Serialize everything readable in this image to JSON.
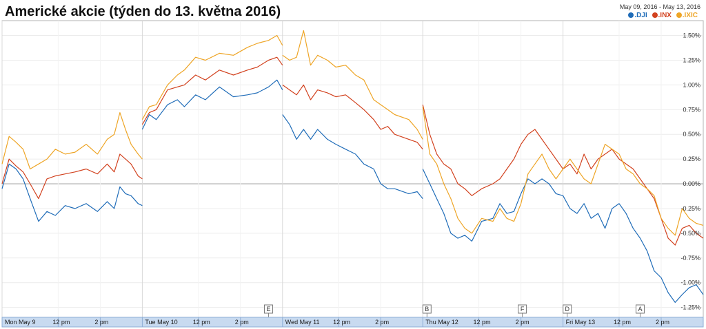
{
  "chart_data": {
    "type": "line",
    "title": "Americké akcie (týden do 13. května 2016)",
    "date_range": "May 09, 2016  -  May 13, 2016",
    "y_unit": "%",
    "ylim": [
      -1.35,
      1.65
    ],
    "y_ticks": [
      "1.50%",
      "1.25%",
      "1.00%",
      "0.75%",
      "0.50%",
      "0.25%",
      "0.00%",
      "-0.25%",
      "-0.50%",
      "-0.75%",
      "-1.00%",
      "-1.25%"
    ],
    "y_tick_values": [
      1.5,
      1.25,
      1.0,
      0.75,
      0.5,
      0.25,
      0.0,
      -0.25,
      -0.5,
      -0.75,
      -1.0,
      -1.25
    ],
    "x_ticks": [
      "Mon May 9",
      "12 pm",
      "2 pm",
      "Tue May 10",
      "12 pm",
      "2 pm",
      "Wed May 11",
      "12 pm",
      "2 pm",
      "Thu May 12",
      "12 pm",
      "2 pm",
      "Fri May 13",
      "12 pm",
      "2 pm"
    ],
    "x_tick_values": [
      0,
      0.4,
      0.7,
      1,
      1.4,
      1.7,
      2,
      2.4,
      2.7,
      3,
      3.4,
      3.7,
      4,
      4.4,
      4.7
    ],
    "x_range": [
      0,
      5
    ],
    "grid": true,
    "legend_position": "top-right",
    "flags": [
      {
        "label": "E",
        "x": 1.9
      },
      {
        "label": "B",
        "x": 3.03
      },
      {
        "label": "F",
        "x": 3.71
      },
      {
        "label": "D",
        "x": 4.03
      },
      {
        "label": "A",
        "x": 4.55
      }
    ],
    "series": [
      {
        "name": ".DJI",
        "color": "#1f6cb8",
        "points": [
          [
            0.0,
            -0.05
          ],
          [
            0.05,
            0.2
          ],
          [
            0.1,
            0.15
          ],
          [
            0.15,
            0.05
          ],
          [
            0.2,
            -0.15
          ],
          [
            0.26,
            -0.38
          ],
          [
            0.32,
            -0.28
          ],
          [
            0.38,
            -0.32
          ],
          [
            0.45,
            -0.22
          ],
          [
            0.52,
            -0.25
          ],
          [
            0.6,
            -0.2
          ],
          [
            0.68,
            -0.28
          ],
          [
            0.75,
            -0.18
          ],
          [
            0.8,
            -0.25
          ],
          [
            0.84,
            -0.03
          ],
          [
            0.88,
            -0.1
          ],
          [
            0.92,
            -0.12
          ],
          [
            0.97,
            -0.2
          ],
          [
            1.0,
            -0.22
          ],
          [
            1.0,
            0.55
          ],
          [
            1.05,
            0.7
          ],
          [
            1.1,
            0.65
          ],
          [
            1.18,
            0.8
          ],
          [
            1.25,
            0.85
          ],
          [
            1.3,
            0.78
          ],
          [
            1.38,
            0.9
          ],
          [
            1.45,
            0.85
          ],
          [
            1.55,
            0.98
          ],
          [
            1.65,
            0.88
          ],
          [
            1.75,
            0.9
          ],
          [
            1.82,
            0.92
          ],
          [
            1.9,
            0.98
          ],
          [
            1.96,
            1.05
          ],
          [
            2.0,
            0.95
          ],
          [
            2.0,
            0.7
          ],
          [
            2.05,
            0.6
          ],
          [
            2.1,
            0.45
          ],
          [
            2.15,
            0.55
          ],
          [
            2.2,
            0.45
          ],
          [
            2.25,
            0.55
          ],
          [
            2.32,
            0.45
          ],
          [
            2.38,
            0.4
          ],
          [
            2.45,
            0.35
          ],
          [
            2.52,
            0.3
          ],
          [
            2.58,
            0.2
          ],
          [
            2.65,
            0.15
          ],
          [
            2.7,
            0.0
          ],
          [
            2.75,
            -0.05
          ],
          [
            2.8,
            -0.05
          ],
          [
            2.9,
            -0.1
          ],
          [
            2.96,
            -0.08
          ],
          [
            3.0,
            -0.15
          ],
          [
            3.0,
            0.15
          ],
          [
            3.05,
            0.0
          ],
          [
            3.1,
            -0.15
          ],
          [
            3.15,
            -0.3
          ],
          [
            3.2,
            -0.5
          ],
          [
            3.25,
            -0.55
          ],
          [
            3.3,
            -0.52
          ],
          [
            3.35,
            -0.58
          ],
          [
            3.42,
            -0.38
          ],
          [
            3.5,
            -0.35
          ],
          [
            3.55,
            -0.2
          ],
          [
            3.6,
            -0.3
          ],
          [
            3.65,
            -0.28
          ],
          [
            3.7,
            -0.1
          ],
          [
            3.75,
            0.05
          ],
          [
            3.8,
            0.0
          ],
          [
            3.85,
            0.05
          ],
          [
            3.9,
            0.0
          ],
          [
            3.95,
            -0.1
          ],
          [
            4.0,
            -0.12
          ],
          [
            4.05,
            -0.25
          ],
          [
            4.1,
            -0.3
          ],
          [
            4.15,
            -0.2
          ],
          [
            4.2,
            -0.35
          ],
          [
            4.25,
            -0.3
          ],
          [
            4.3,
            -0.45
          ],
          [
            4.35,
            -0.25
          ],
          [
            4.4,
            -0.2
          ],
          [
            4.45,
            -0.3
          ],
          [
            4.5,
            -0.45
          ],
          [
            4.55,
            -0.55
          ],
          [
            4.6,
            -0.68
          ],
          [
            4.65,
            -0.88
          ],
          [
            4.7,
            -0.95
          ],
          [
            4.75,
            -1.1
          ],
          [
            4.8,
            -1.2
          ],
          [
            4.85,
            -1.12
          ],
          [
            4.9,
            -1.05
          ],
          [
            4.95,
            -1.02
          ],
          [
            5.0,
            -1.12
          ]
        ]
      },
      {
        "name": ".INX",
        "color": "#d2421f",
        "points": [
          [
            0.0,
            0.0
          ],
          [
            0.05,
            0.25
          ],
          [
            0.1,
            0.18
          ],
          [
            0.15,
            0.12
          ],
          [
            0.2,
            0.0
          ],
          [
            0.26,
            -0.15
          ],
          [
            0.32,
            0.05
          ],
          [
            0.38,
            0.08
          ],
          [
            0.45,
            0.1
          ],
          [
            0.52,
            0.12
          ],
          [
            0.6,
            0.15
          ],
          [
            0.68,
            0.1
          ],
          [
            0.75,
            0.2
          ],
          [
            0.8,
            0.12
          ],
          [
            0.84,
            0.3
          ],
          [
            0.88,
            0.25
          ],
          [
            0.92,
            0.2
          ],
          [
            0.97,
            0.08
          ],
          [
            1.0,
            0.05
          ],
          [
            1.0,
            0.6
          ],
          [
            1.05,
            0.72
          ],
          [
            1.1,
            0.75
          ],
          [
            1.18,
            0.95
          ],
          [
            1.25,
            0.98
          ],
          [
            1.3,
            1.0
          ],
          [
            1.38,
            1.1
          ],
          [
            1.45,
            1.05
          ],
          [
            1.55,
            1.15
          ],
          [
            1.65,
            1.1
          ],
          [
            1.75,
            1.15
          ],
          [
            1.82,
            1.18
          ],
          [
            1.9,
            1.25
          ],
          [
            1.96,
            1.28
          ],
          [
            2.0,
            1.2
          ],
          [
            2.0,
            1.0
          ],
          [
            2.05,
            0.95
          ],
          [
            2.1,
            0.9
          ],
          [
            2.15,
            1.0
          ],
          [
            2.2,
            0.85
          ],
          [
            2.25,
            0.95
          ],
          [
            2.32,
            0.92
          ],
          [
            2.38,
            0.88
          ],
          [
            2.45,
            0.9
          ],
          [
            2.52,
            0.82
          ],
          [
            2.58,
            0.75
          ],
          [
            2.65,
            0.65
          ],
          [
            2.7,
            0.55
          ],
          [
            2.75,
            0.58
          ],
          [
            2.8,
            0.5
          ],
          [
            2.9,
            0.45
          ],
          [
            2.96,
            0.42
          ],
          [
            3.0,
            0.35
          ],
          [
            3.0,
            0.8
          ],
          [
            3.05,
            0.5
          ],
          [
            3.1,
            0.3
          ],
          [
            3.15,
            0.2
          ],
          [
            3.2,
            0.15
          ],
          [
            3.25,
            0.0
          ],
          [
            3.3,
            -0.05
          ],
          [
            3.35,
            -0.12
          ],
          [
            3.42,
            -0.05
          ],
          [
            3.5,
            0.0
          ],
          [
            3.55,
            0.05
          ],
          [
            3.6,
            0.15
          ],
          [
            3.65,
            0.25
          ],
          [
            3.7,
            0.4
          ],
          [
            3.75,
            0.5
          ],
          [
            3.8,
            0.55
          ],
          [
            3.85,
            0.45
          ],
          [
            3.9,
            0.35
          ],
          [
            3.95,
            0.25
          ],
          [
            4.0,
            0.15
          ],
          [
            4.05,
            0.2
          ],
          [
            4.1,
            0.1
          ],
          [
            4.15,
            0.3
          ],
          [
            4.2,
            0.15
          ],
          [
            4.25,
            0.25
          ],
          [
            4.3,
            0.3
          ],
          [
            4.35,
            0.35
          ],
          [
            4.4,
            0.25
          ],
          [
            4.45,
            0.2
          ],
          [
            4.5,
            0.15
          ],
          [
            4.55,
            0.05
          ],
          [
            4.6,
            -0.05
          ],
          [
            4.65,
            -0.15
          ],
          [
            4.7,
            -0.35
          ],
          [
            4.75,
            -0.55
          ],
          [
            4.8,
            -0.62
          ],
          [
            4.85,
            -0.45
          ],
          [
            4.9,
            -0.42
          ],
          [
            4.95,
            -0.5
          ],
          [
            5.0,
            -0.55
          ]
        ]
      },
      {
        "name": ".IXIC",
        "color": "#eea526",
        "points": [
          [
            0.0,
            0.2
          ],
          [
            0.05,
            0.48
          ],
          [
            0.1,
            0.42
          ],
          [
            0.15,
            0.35
          ],
          [
            0.2,
            0.15
          ],
          [
            0.26,
            0.2
          ],
          [
            0.32,
            0.25
          ],
          [
            0.38,
            0.35
          ],
          [
            0.45,
            0.3
          ],
          [
            0.52,
            0.32
          ],
          [
            0.6,
            0.4
          ],
          [
            0.68,
            0.3
          ],
          [
            0.75,
            0.45
          ],
          [
            0.8,
            0.5
          ],
          [
            0.84,
            0.72
          ],
          [
            0.88,
            0.55
          ],
          [
            0.92,
            0.4
          ],
          [
            0.97,
            0.3
          ],
          [
            1.0,
            0.25
          ],
          [
            1.0,
            0.65
          ],
          [
            1.05,
            0.78
          ],
          [
            1.1,
            0.8
          ],
          [
            1.18,
            1.0
          ],
          [
            1.25,
            1.1
          ],
          [
            1.3,
            1.15
          ],
          [
            1.38,
            1.28
          ],
          [
            1.45,
            1.25
          ],
          [
            1.55,
            1.32
          ],
          [
            1.65,
            1.3
          ],
          [
            1.75,
            1.38
          ],
          [
            1.82,
            1.42
          ],
          [
            1.9,
            1.45
          ],
          [
            1.96,
            1.5
          ],
          [
            2.0,
            1.4
          ],
          [
            2.0,
            1.3
          ],
          [
            2.05,
            1.25
          ],
          [
            2.1,
            1.28
          ],
          [
            2.15,
            1.55
          ],
          [
            2.2,
            1.2
          ],
          [
            2.25,
            1.3
          ],
          [
            2.32,
            1.25
          ],
          [
            2.38,
            1.18
          ],
          [
            2.45,
            1.2
          ],
          [
            2.52,
            1.1
          ],
          [
            2.58,
            1.05
          ],
          [
            2.65,
            0.85
          ],
          [
            2.7,
            0.8
          ],
          [
            2.75,
            0.75
          ],
          [
            2.8,
            0.7
          ],
          [
            2.9,
            0.65
          ],
          [
            2.96,
            0.55
          ],
          [
            3.0,
            0.45
          ],
          [
            3.0,
            0.78
          ],
          [
            3.05,
            0.3
          ],
          [
            3.1,
            0.2
          ],
          [
            3.15,
            0.0
          ],
          [
            3.2,
            -0.15
          ],
          [
            3.25,
            -0.35
          ],
          [
            3.3,
            -0.45
          ],
          [
            3.35,
            -0.5
          ],
          [
            3.42,
            -0.35
          ],
          [
            3.5,
            -0.38
          ],
          [
            3.55,
            -0.25
          ],
          [
            3.6,
            -0.35
          ],
          [
            3.65,
            -0.38
          ],
          [
            3.7,
            -0.2
          ],
          [
            3.75,
            0.1
          ],
          [
            3.8,
            0.2
          ],
          [
            3.85,
            0.3
          ],
          [
            3.9,
            0.15
          ],
          [
            3.95,
            0.05
          ],
          [
            4.0,
            0.15
          ],
          [
            4.05,
            0.25
          ],
          [
            4.1,
            0.15
          ],
          [
            4.15,
            0.05
          ],
          [
            4.2,
            0.0
          ],
          [
            4.25,
            0.2
          ],
          [
            4.3,
            0.4
          ],
          [
            4.35,
            0.35
          ],
          [
            4.4,
            0.3
          ],
          [
            4.45,
            0.15
          ],
          [
            4.5,
            0.1
          ],
          [
            4.55,
            0.0
          ],
          [
            4.6,
            -0.05
          ],
          [
            4.65,
            -0.12
          ],
          [
            4.7,
            -0.35
          ],
          [
            4.75,
            -0.45
          ],
          [
            4.8,
            -0.52
          ],
          [
            4.85,
            -0.25
          ],
          [
            4.9,
            -0.35
          ],
          [
            4.95,
            -0.4
          ],
          [
            5.0,
            -0.42
          ]
        ]
      }
    ]
  }
}
